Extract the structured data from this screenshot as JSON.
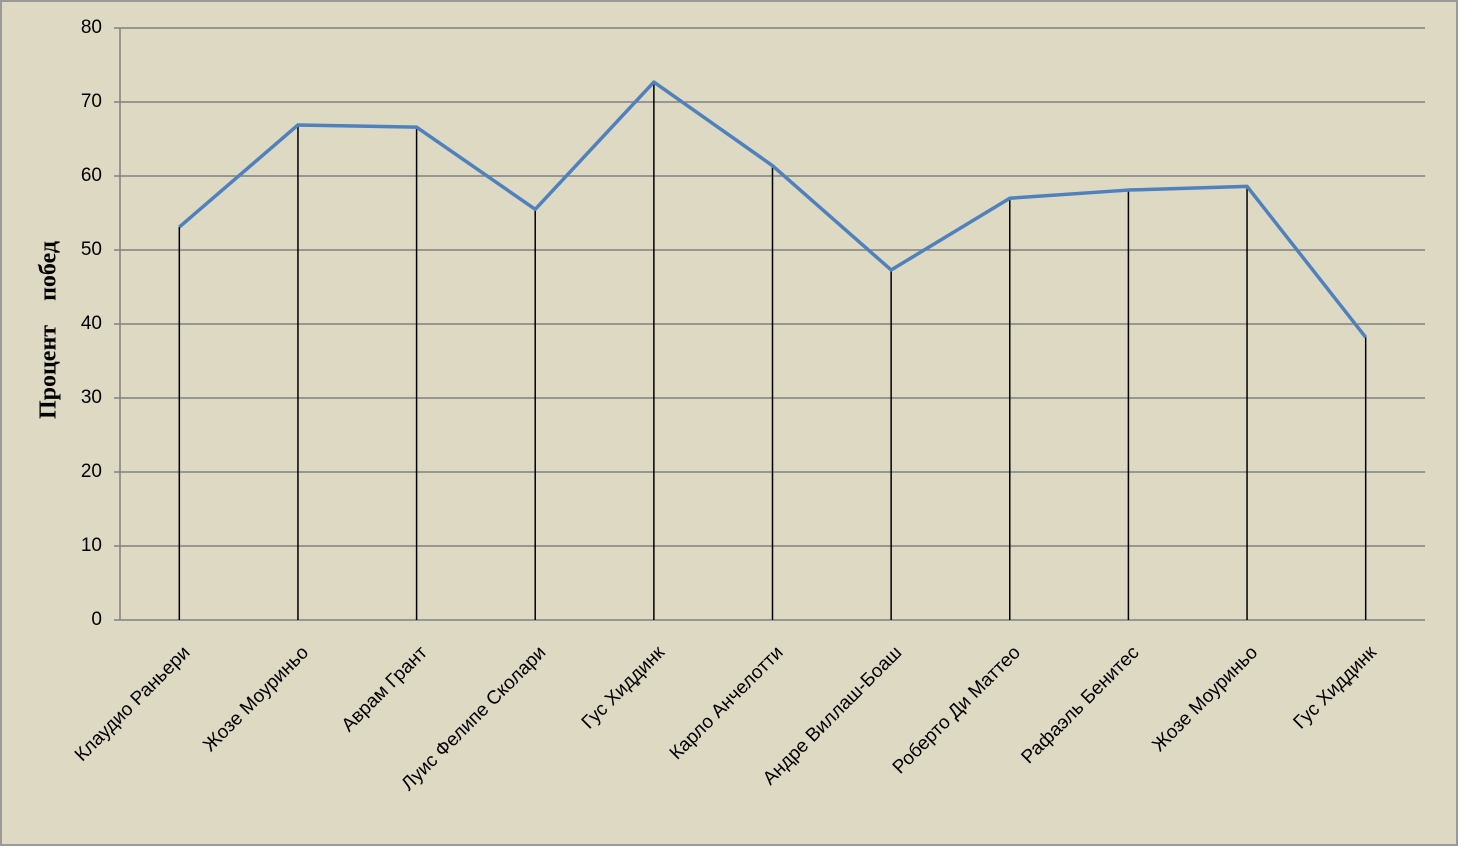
{
  "chart_data": {
    "type": "line",
    "y_label": "Процент побед",
    "categories": [
      "Клаудио Раньери",
      "Жозе Моуриньо",
      "Аврам Грант",
      "Луис Фелипе Сколари",
      "Гус Хиддинк",
      "Карло Анчелотти",
      "Андре Виллаш-Боаш",
      "Роберто Ди Маттео",
      "Рафаэль Бенитес",
      "Жозе Моуриньо",
      "Гус Хиддинк"
    ],
    "values": [
      53.1,
      66.9,
      66.6,
      55.5,
      72.7,
      61.4,
      47.3,
      57.0,
      58.1,
      58.6,
      38.2
    ],
    "color": "#4f81bd",
    "drop_lines": true,
    "ylim": [
      0,
      80
    ],
    "yticks": [
      0,
      10,
      20,
      30,
      40,
      50,
      60,
      70,
      80
    ],
    "grid": true
  }
}
